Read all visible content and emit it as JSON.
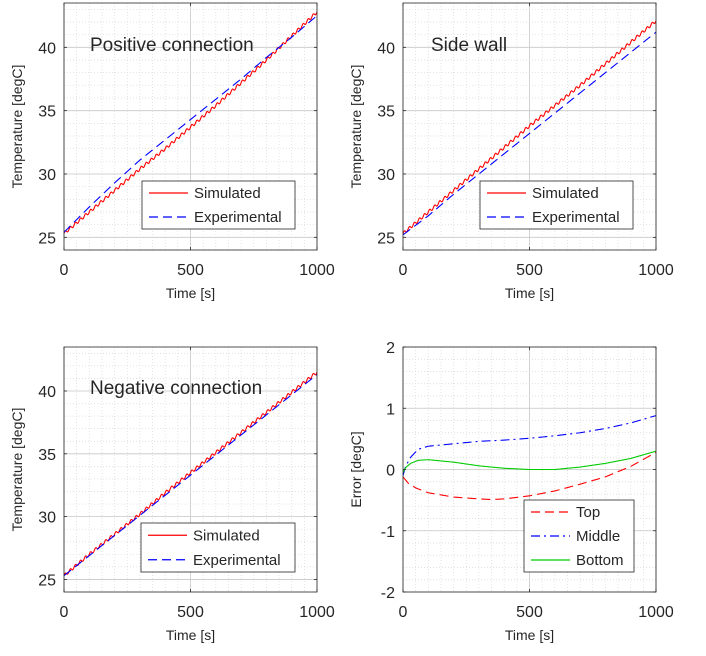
{
  "chart_data": [
    {
      "type": "line",
      "title": "Positive connection",
      "xlabel": "Time [s]",
      "ylabel": "Temperature [degC]",
      "xlim": [
        0,
        1000
      ],
      "ylim": [
        24,
        43.5
      ],
      "xticks": [
        0,
        500,
        1000
      ],
      "yticks": [
        25,
        30,
        35,
        40
      ],
      "grid": true,
      "legend_position": "bottom-right",
      "series": [
        {
          "name": "Simulated",
          "color": "#ff0000",
          "style": "solid",
          "ripple": true,
          "x": [
            0,
            100,
            200,
            300,
            400,
            500,
            600,
            700,
            800,
            900,
            1000
          ],
          "y": [
            25.3,
            27.0,
            28.7,
            30.4,
            32.0,
            33.7,
            35.4,
            37.2,
            39.0,
            40.9,
            42.8
          ]
        },
        {
          "name": "Experimental",
          "color": "#0000ff",
          "style": "dashed",
          "ripple": false,
          "x": [
            0,
            100,
            200,
            300,
            400,
            500,
            600,
            700,
            800,
            900,
            1000
          ],
          "y": [
            25.4,
            27.4,
            29.3,
            31.1,
            32.7,
            34.3,
            35.9,
            37.5,
            39.2,
            40.8,
            42.5
          ]
        }
      ]
    },
    {
      "type": "line",
      "title": "Side wall",
      "xlabel": "Time [s]",
      "ylabel": "Temperature [degC]",
      "xlim": [
        0,
        1000
      ],
      "ylim": [
        24,
        43.5
      ],
      "xticks": [
        0,
        500,
        1000
      ],
      "yticks": [
        25,
        30,
        35,
        40
      ],
      "grid": true,
      "legend_position": "bottom-right",
      "series": [
        {
          "name": "Simulated",
          "color": "#ff0000",
          "style": "solid",
          "ripple": true,
          "x": [
            0,
            100,
            200,
            300,
            400,
            500,
            600,
            700,
            800,
            900,
            1000
          ],
          "y": [
            25.3,
            27.0,
            28.7,
            30.4,
            32.1,
            33.8,
            35.4,
            37.0,
            38.7,
            40.4,
            42.1
          ]
        },
        {
          "name": "Experimental",
          "color": "#0000ff",
          "style": "dashed",
          "ripple": false,
          "x": [
            0,
            100,
            200,
            300,
            400,
            500,
            600,
            700,
            800,
            900,
            1000
          ],
          "y": [
            25.2,
            26.7,
            28.4,
            30.0,
            31.6,
            33.2,
            34.8,
            36.4,
            38.0,
            39.6,
            41.2
          ]
        }
      ]
    },
    {
      "type": "line",
      "title": "Negative connection",
      "xlabel": "Time [s]",
      "ylabel": "Temperature [degC]",
      "xlim": [
        0,
        1000
      ],
      "ylim": [
        24,
        43.5
      ],
      "xticks": [
        0,
        500,
        1000
      ],
      "yticks": [
        25,
        30,
        35,
        40
      ],
      "grid": true,
      "legend_position": "bottom-right",
      "series": [
        {
          "name": "Simulated",
          "color": "#ff0000",
          "style": "solid",
          "ripple": true,
          "x": [
            0,
            100,
            200,
            300,
            400,
            500,
            600,
            700,
            800,
            900,
            1000
          ],
          "y": [
            25.3,
            27.0,
            28.6,
            30.2,
            31.9,
            33.5,
            35.1,
            36.7,
            38.3,
            39.9,
            41.5
          ]
        },
        {
          "name": "Experimental",
          "color": "#0000ff",
          "style": "dashed",
          "ripple": false,
          "x": [
            0,
            100,
            200,
            300,
            400,
            500,
            600,
            700,
            800,
            900,
            1000
          ],
          "y": [
            25.3,
            26.9,
            28.5,
            30.1,
            31.7,
            33.3,
            34.9,
            36.5,
            38.1,
            39.7,
            41.3
          ]
        }
      ]
    },
    {
      "type": "line",
      "title": "",
      "xlabel": "Time [s]",
      "ylabel": "Error [degC]",
      "xlim": [
        0,
        1000
      ],
      "ylim": [
        -2,
        2
      ],
      "xticks": [
        0,
        500,
        1000
      ],
      "yticks": [
        -2,
        -1,
        0,
        1,
        2
      ],
      "grid": true,
      "legend_position": "bottom-right",
      "series": [
        {
          "name": "Top",
          "color": "#ff0000",
          "style": "dashed",
          "ripple": false,
          "x": [
            0,
            20,
            50,
            100,
            200,
            300,
            350,
            400,
            500,
            600,
            700,
            800,
            900,
            1000
          ],
          "y": [
            -0.12,
            -0.22,
            -0.3,
            -0.38,
            -0.45,
            -0.48,
            -0.49,
            -0.48,
            -0.43,
            -0.35,
            -0.24,
            -0.12,
            0.05,
            0.28
          ]
        },
        {
          "name": "Middle",
          "color": "#0000ff",
          "style": "dashdot",
          "ripple": false,
          "x": [
            0,
            10,
            30,
            60,
            100,
            200,
            300,
            400,
            500,
            600,
            700,
            800,
            900,
            1000
          ],
          "y": [
            -0.1,
            0.05,
            0.2,
            0.33,
            0.38,
            0.42,
            0.46,
            0.48,
            0.51,
            0.55,
            0.6,
            0.67,
            0.76,
            0.88
          ]
        },
        {
          "name": "Bottom",
          "color": "#00cc00",
          "style": "solid",
          "ripple": false,
          "x": [
            0,
            10,
            30,
            60,
            100,
            200,
            300,
            400,
            500,
            600,
            700,
            800,
            900,
            1000
          ],
          "y": [
            -0.05,
            0.03,
            0.1,
            0.15,
            0.16,
            0.12,
            0.06,
            0.02,
            0.0,
            0.0,
            0.04,
            0.1,
            0.18,
            0.3
          ]
        }
      ]
    }
  ]
}
